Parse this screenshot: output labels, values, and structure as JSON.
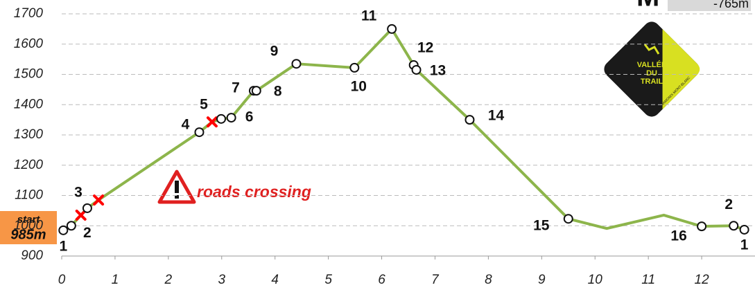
{
  "chart_data": {
    "type": "line",
    "x": [
      0.03,
      0.18,
      0.36,
      0.48,
      0.69,
      2.58,
      2.82,
      2.99,
      3.18,
      3.6,
      3.65,
      4.4,
      5.49,
      6.19,
      6.6,
      6.65,
      7.65,
      9.5,
      10.22,
      11.29,
      12.0,
      12.6,
      12.8
    ],
    "values": [
      985,
      1000,
      1035,
      1058,
      1085,
      1309,
      1343,
      1353,
      1357,
      1446,
      1446,
      1535,
      1522,
      1650,
      1531,
      1515,
      1350,
      1023,
      991,
      1035,
      998,
      1000,
      987
    ],
    "point_labels": [
      "1",
      "2",
      null,
      "3",
      null,
      "4",
      "5",
      null,
      "6",
      "7",
      "8",
      "9",
      "10",
      "11",
      "12",
      "13",
      "14",
      "15",
      null,
      null,
      "16",
      "2",
      "1"
    ],
    "markers": [
      "circle",
      "circle",
      "cross",
      "circle",
      "cross",
      "circle",
      "cross",
      "circle",
      "circle",
      "circle",
      "circle",
      "circle",
      "circle",
      "circle",
      "circle",
      "circle",
      "circle",
      "circle",
      null,
      null,
      "circle",
      "circle",
      "circle"
    ],
    "color": "#8db54b",
    "marker_color": "#ff0000",
    "xlim": [
      0,
      13
    ],
    "xticks": [
      0,
      1,
      2,
      3,
      4,
      5,
      6,
      7,
      8,
      9,
      10,
      11,
      12
    ],
    "ylim": [
      900,
      1700
    ],
    "yticks": [
      900,
      1000,
      1100,
      1200,
      1300,
      1400,
      1500,
      1600,
      1700
    ],
    "grid": true,
    "annotations": {
      "start": "start",
      "start_elevation": "985m",
      "warning": "roads crossing",
      "corner_letter": "M",
      "descent": "-765m"
    },
    "logo": {
      "line1": "VALLÉE",
      "line2": "DU",
      "line3": "TRAIL",
      "place": "CHAMONIX MONT-BLANC"
    }
  }
}
